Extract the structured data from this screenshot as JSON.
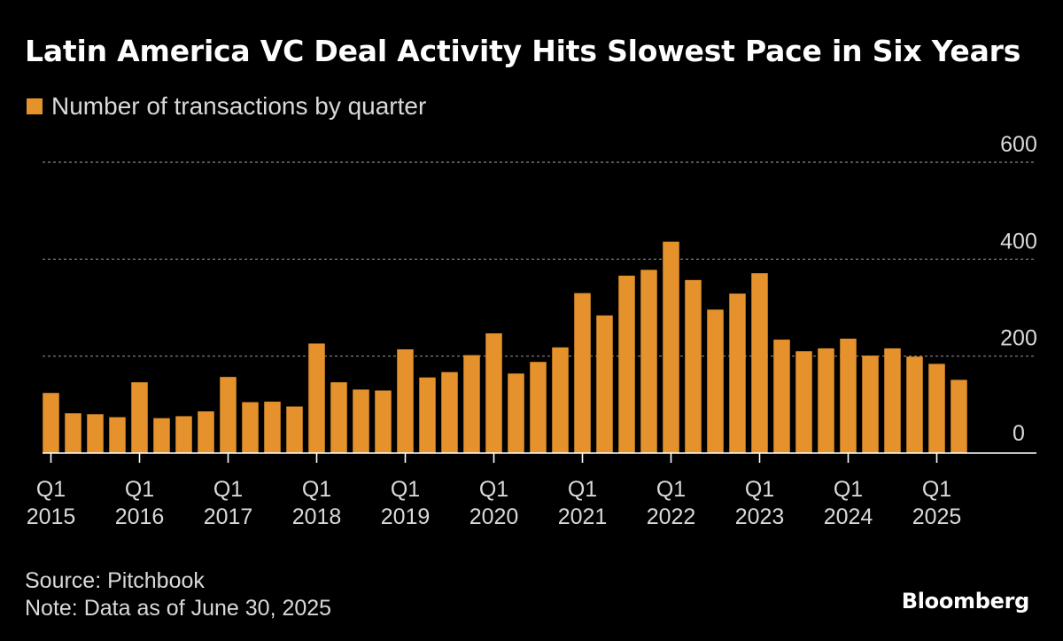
{
  "colors": {
    "bar": "#E5922D",
    "grid": "#888888",
    "axis": "#ffffff",
    "text": "#d9d9d9"
  },
  "footer": {
    "source": "Source: Pitchbook",
    "note": "Note: Data as of June 30, 2025"
  },
  "brand": "Bloomberg",
  "chart_data": {
    "type": "bar",
    "title": "Latin America VC Deal Activity Hits Slowest Pace in Six Years",
    "legend": "Number of transactions by quarter",
    "legend_position": "top-left",
    "xlabel": "",
    "ylabel": "",
    "ylim": [
      0,
      600
    ],
    "yticks": [
      0,
      200,
      400,
      600
    ],
    "grid": true,
    "x_tick_labels": [
      {
        "quarter": "Q1",
        "year": "2015",
        "index": 0
      },
      {
        "quarter": "Q1",
        "year": "2016",
        "index": 4
      },
      {
        "quarter": "Q1",
        "year": "2017",
        "index": 8
      },
      {
        "quarter": "Q1",
        "year": "2018",
        "index": 12
      },
      {
        "quarter": "Q1",
        "year": "2019",
        "index": 16
      },
      {
        "quarter": "Q1",
        "year": "2020",
        "index": 20
      },
      {
        "quarter": "Q1",
        "year": "2021",
        "index": 24
      },
      {
        "quarter": "Q1",
        "year": "2022",
        "index": 28
      },
      {
        "quarter": "Q1",
        "year": "2023",
        "index": 32
      },
      {
        "quarter": "Q1",
        "year": "2024",
        "index": 36
      },
      {
        "quarter": "Q1",
        "year": "2025",
        "index": 40
      }
    ],
    "categories": [
      "Q1 2015",
      "Q2 2015",
      "Q3 2015",
      "Q4 2015",
      "Q1 2016",
      "Q2 2016",
      "Q3 2016",
      "Q4 2016",
      "Q1 2017",
      "Q2 2017",
      "Q3 2017",
      "Q4 2017",
      "Q1 2018",
      "Q2 2018",
      "Q3 2018",
      "Q4 2018",
      "Q1 2019",
      "Q2 2019",
      "Q3 2019",
      "Q4 2019",
      "Q1 2020",
      "Q2 2020",
      "Q3 2020",
      "Q4 2020",
      "Q1 2021",
      "Q2 2021",
      "Q3 2021",
      "Q4 2021",
      "Q1 2022",
      "Q2 2022",
      "Q3 2022",
      "Q4 2022",
      "Q1 2023",
      "Q2 2023",
      "Q3 2023",
      "Q4 2023",
      "Q1 2024",
      "Q2 2024",
      "Q3 2024",
      "Q4 2024",
      "Q1 2025",
      "Q2 2025"
    ],
    "values": [
      124,
      82,
      80,
      74,
      146,
      72,
      76,
      86,
      157,
      105,
      106,
      96,
      226,
      146,
      131,
      129,
      214,
      156,
      167,
      202,
      247,
      164,
      188,
      218,
      330,
      284,
      366,
      378,
      436,
      357,
      296,
      329,
      371,
      234,
      210,
      216,
      236,
      201,
      216,
      199,
      184,
      151
    ]
  }
}
